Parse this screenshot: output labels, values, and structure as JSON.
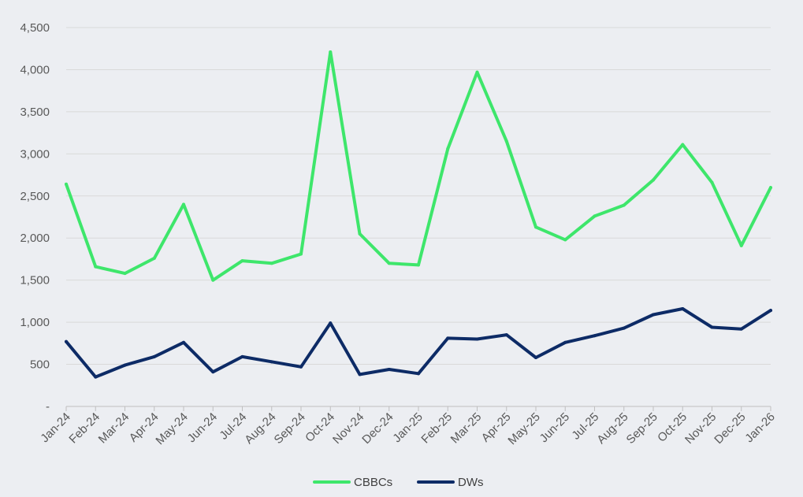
{
  "chart_data": {
    "type": "line",
    "title": "",
    "xlabel": "",
    "ylabel": "",
    "ylim": [
      0,
      4500
    ],
    "yticks": [
      0,
      500,
      1000,
      1500,
      2000,
      2500,
      3000,
      3500,
      4000,
      4500
    ],
    "ytick_labels": [
      "-",
      "500",
      "1,000",
      "1,500",
      "2,000",
      "2,500",
      "3,000",
      "3,500",
      "4,000",
      "4,500"
    ],
    "grid": "horizontal",
    "legend_position": "bottom-center",
    "categories": [
      "Jan-24",
      "Feb-24",
      "Mar-24",
      "Apr-24",
      "May-24",
      "Jun-24",
      "Jul-24",
      "Aug-24",
      "Sep-24",
      "Oct-24",
      "Nov-24",
      "Dec-24",
      "Jan-25",
      "Feb-25",
      "Mar-25",
      "Apr-25",
      "May-25",
      "Jun-25",
      "Jul-25",
      "Aug-25",
      "Sep-25",
      "Oct-25",
      "Nov-25",
      "Dec-25",
      "Jan-26"
    ],
    "series": [
      {
        "name": "CBBCs",
        "color": "#3ee66b",
        "values": [
          2640,
          1660,
          1580,
          1760,
          2400,
          1500,
          1730,
          1700,
          1810,
          4210,
          2050,
          1700,
          1680,
          3060,
          3970,
          3150,
          2130,
          1980,
          2260,
          2390,
          2690,
          3110,
          2660,
          1910,
          2600
        ]
      },
      {
        "name": "DWs",
        "color": "#0d2b66",
        "values": [
          770,
          350,
          490,
          590,
          760,
          410,
          590,
          530,
          470,
          990,
          380,
          440,
          390,
          810,
          800,
          850,
          580,
          760,
          840,
          930,
          1090,
          1160,
          940,
          920,
          1140
        ]
      }
    ]
  }
}
